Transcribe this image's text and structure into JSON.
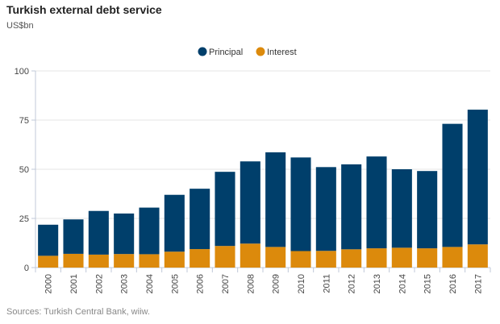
{
  "title": "Turkish external debt service",
  "subtitle": "US$bn",
  "source": "Sources: Turkish Central Bank, wiiw.",
  "colors": {
    "principal": "#003f6b",
    "interest": "#dc8a0c",
    "gridline": "#e6e6e6",
    "axis": "#c0c8d8"
  },
  "chart_data": {
    "type": "bar",
    "stacked": true,
    "title": "Turkish external debt service",
    "ylabel": "US$bn",
    "xlabel": "",
    "ylim": [
      0,
      100
    ],
    "yticks": [
      0,
      25,
      50,
      75,
      100
    ],
    "grid": true,
    "legend_position": "top-center",
    "categories": [
      "2000",
      "2001",
      "2002",
      "2003",
      "2004",
      "2005",
      "2006",
      "2007",
      "2008",
      "2009",
      "2010",
      "2011",
      "2012",
      "2013",
      "2014",
      "2015",
      "2016",
      "2017"
    ],
    "series": [
      {
        "name": "Principal",
        "values": [
          15.8,
          17.5,
          22.2,
          20.6,
          23.7,
          28.9,
          30.7,
          37.7,
          41.8,
          48.1,
          47.6,
          42.6,
          43.2,
          46.7,
          39.9,
          39.3,
          62.6,
          68.5
        ]
      },
      {
        "name": "Interest",
        "values": [
          6.0,
          7.0,
          6.6,
          6.9,
          6.8,
          8.1,
          9.4,
          11.0,
          12.2,
          10.5,
          8.4,
          8.5,
          9.3,
          9.8,
          10.1,
          9.8,
          10.5,
          11.8
        ]
      }
    ]
  }
}
